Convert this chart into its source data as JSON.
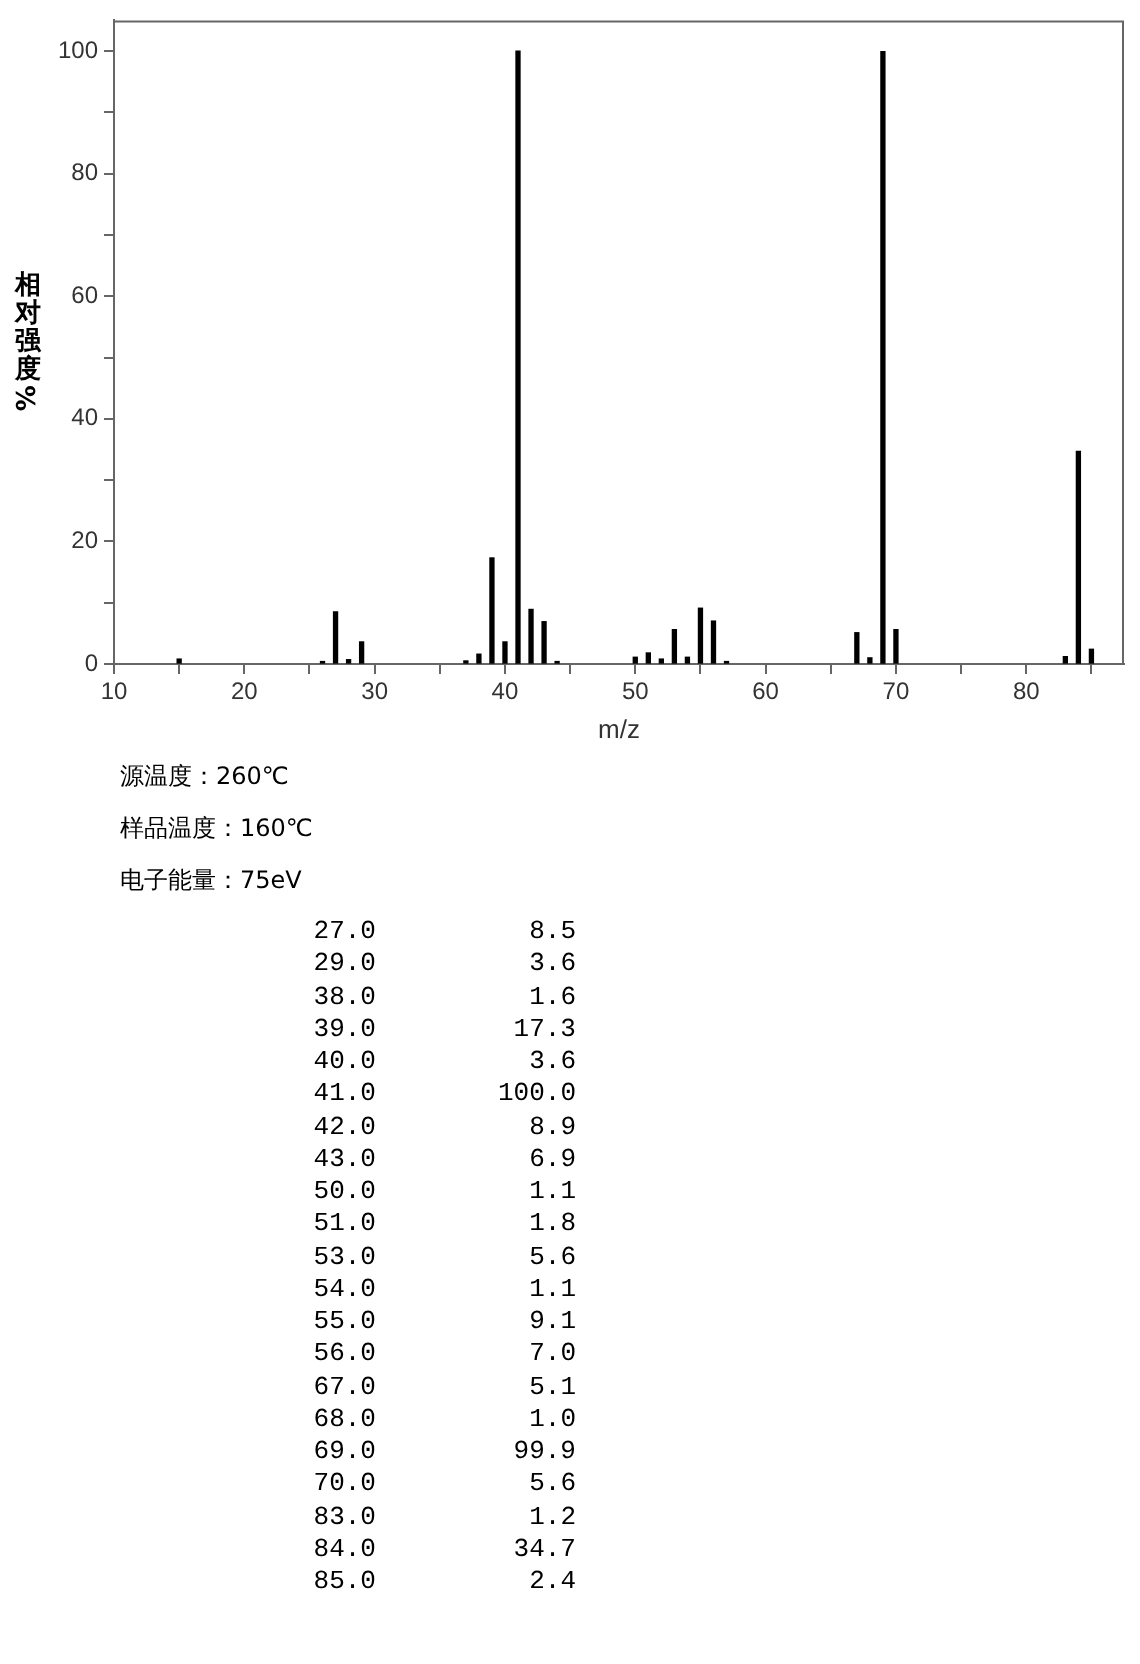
{
  "chart_data": {
    "type": "bar",
    "xlabel": "m/z",
    "ylabel": "相对强度%",
    "x": [
      15,
      26,
      27,
      28,
      29,
      37,
      38,
      39,
      40,
      41,
      42,
      43,
      44,
      50,
      51,
      52,
      53,
      54,
      55,
      56,
      57,
      67,
      68,
      69,
      70,
      83,
      84,
      85
    ],
    "series": [
      {
        "color": "#000000",
        "values": [
          0.8,
          0.4,
          8.5,
          0.7,
          3.6,
          0.5,
          1.6,
          17.3,
          3.6,
          100.0,
          8.9,
          6.9,
          0.4,
          1.1,
          1.8,
          0.8,
          5.6,
          1.1,
          9.1,
          7.0,
          0.4,
          5.1,
          1.0,
          99.9,
          5.6,
          1.2,
          34.7,
          2.4
        ]
      }
    ],
    "xlim": [
      10,
      87.5
    ],
    "xticks": [
      10,
      {
        "value": 15,
        "label": null
      },
      20,
      {
        "value": 25,
        "label": null
      },
      30,
      {
        "value": 35,
        "label": null
      },
      40,
      {
        "value": 45,
        "label": null
      },
      50,
      {
        "value": 55,
        "label": null
      },
      60,
      {
        "value": 65,
        "label": null
      },
      70,
      {
        "value": 75,
        "label": null
      },
      80,
      {
        "value": 85,
        "label": null
      }
    ],
    "ylim": [
      0,
      105
    ],
    "yticks": [
      0,
      {
        "value": 10,
        "label": null
      },
      20,
      {
        "value": 30,
        "label": null
      },
      40,
      {
        "value": 50,
        "label": null
      },
      60,
      {
        "value": 70,
        "label": null
      },
      80,
      {
        "value": 90,
        "label": null
      },
      100
    ],
    "annotations": [
      "源温度：260℃",
      "样品温度：160℃",
      "电子能量：75eV",
      "27.0 8.5",
      "29.0 3.6",
      "38.0 1.6",
      "39.0 17.3",
      "40.0 3.6",
      "41.0 100.0",
      "42.0 8.9",
      "43.0 6.9",
      "50.0 1.1",
      "51.0 1.8",
      "53.0 5.6",
      "54.0 1.1",
      "55.0 9.1",
      "56.0 7.0",
      "67.0 5.1",
      "68.0 1.0",
      "69.0 99.9",
      "70.0 5.6",
      "83.0 1.2",
      "84.0 34.7",
      "85.0 2.4"
    ]
  }
}
